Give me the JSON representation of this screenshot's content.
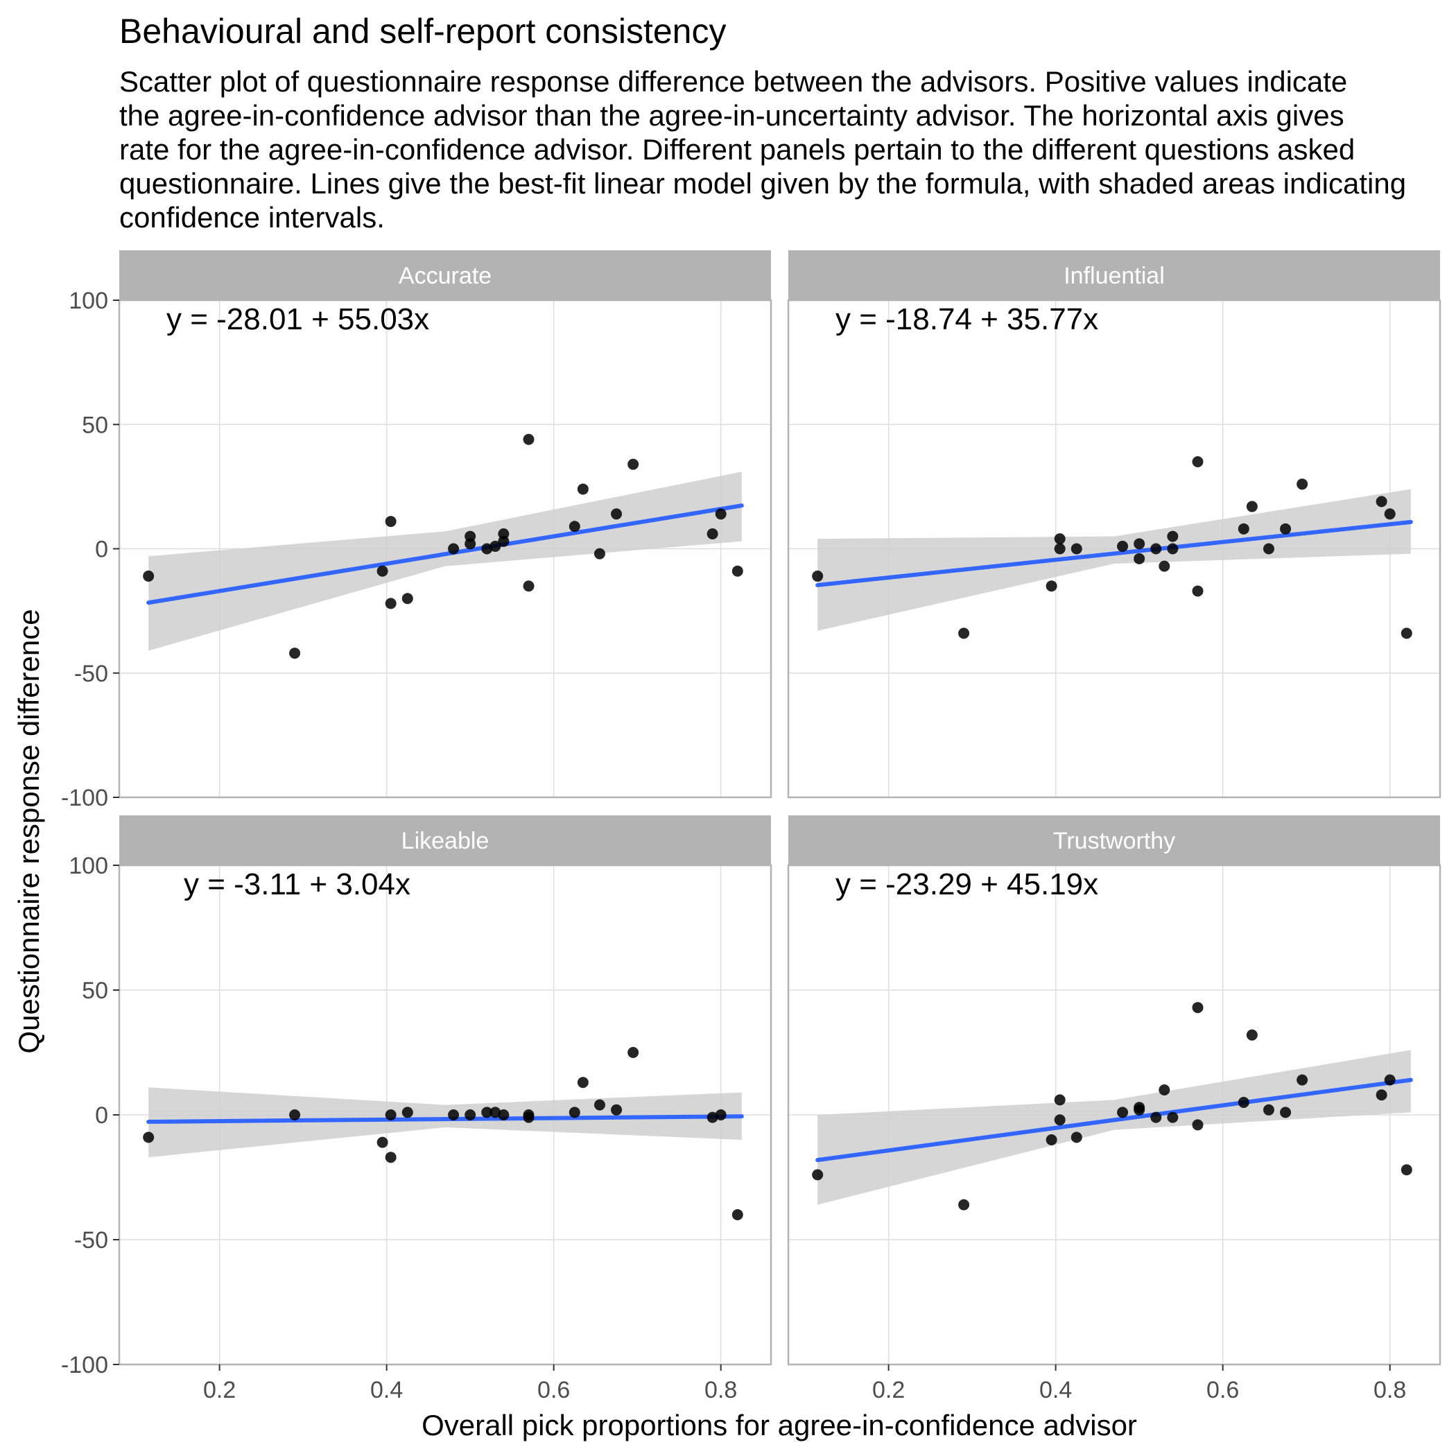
{
  "title": "Behavioural and self-report consistency",
  "subtitle_lines": [
    "Scatter plot of questionnaire response difference between the advisors. Positive values indicate",
    "the agree-in-confidence advisor than the agree-in-uncertainty advisor. The horizontal axis gives",
    "rate for the agree-in-confidence advisor. Different panels pertain to the different questions asked",
    "questionnaire. Lines give the best-fit linear model given by the formula, with shaded areas indicating",
    "confidence intervals."
  ],
  "colors": {
    "point": "#000000",
    "fit_line": "#3366FF",
    "ci_band": "#CCCCCC",
    "strip": "#B3B3B3",
    "grid": "#DEDEDE",
    "panel_border": "#B3B3B3"
  },
  "chart_data": {
    "type": "scatter",
    "facets": "2x2",
    "xlabel": "Overall pick proportions for agree-in-confidence advisor",
    "ylabel": "Questionnaire response difference",
    "xlim": [
      0.08,
      0.86
    ],
    "ylim": [
      -100,
      100
    ],
    "x_ticks": [
      0.2,
      0.4,
      0.6,
      0.8
    ],
    "x_tick_labels": [
      "0.2",
      "0.4",
      "0.6",
      "0.8"
    ],
    "y_ticks": [
      -100,
      -50,
      0,
      50,
      100
    ],
    "y_tick_labels": [
      "-100",
      "-50",
      "0",
      "50",
      "100"
    ],
    "grid": true,
    "panels": [
      {
        "name": "Accurate",
        "equation": "y = -28.01 + 55.03x",
        "intercept": -28.01,
        "slope": 55.03,
        "fit_x_range": [
          0.115,
          0.825
        ],
        "ci": [
          {
            "x": 0.115,
            "lo": -41,
            "hi": -3
          },
          {
            "x": 0.47,
            "lo": -7,
            "hi": 7
          },
          {
            "x": 0.825,
            "lo": 3,
            "hi": 31
          }
        ],
        "points": [
          {
            "x": 0.115,
            "y": -11
          },
          {
            "x": 0.29,
            "y": -42
          },
          {
            "x": 0.395,
            "y": -9
          },
          {
            "x": 0.405,
            "y": 11
          },
          {
            "x": 0.405,
            "y": -22
          },
          {
            "x": 0.425,
            "y": -20
          },
          {
            "x": 0.48,
            "y": 0
          },
          {
            "x": 0.5,
            "y": 5
          },
          {
            "x": 0.5,
            "y": 2
          },
          {
            "x": 0.52,
            "y": 0
          },
          {
            "x": 0.53,
            "y": 1
          },
          {
            "x": 0.54,
            "y": 3
          },
          {
            "x": 0.54,
            "y": 6
          },
          {
            "x": 0.57,
            "y": 44
          },
          {
            "x": 0.57,
            "y": -15
          },
          {
            "x": 0.625,
            "y": 9
          },
          {
            "x": 0.635,
            "y": 24
          },
          {
            "x": 0.655,
            "y": -2
          },
          {
            "x": 0.675,
            "y": 14
          },
          {
            "x": 0.695,
            "y": 34
          },
          {
            "x": 0.79,
            "y": 6
          },
          {
            "x": 0.8,
            "y": 14
          },
          {
            "x": 0.82,
            "y": -9
          }
        ]
      },
      {
        "name": "Influential",
        "equation": "y = -18.74 + 35.77x",
        "intercept": -18.74,
        "slope": 35.77,
        "fit_x_range": [
          0.115,
          0.825
        ],
        "ci": [
          {
            "x": 0.115,
            "lo": -33,
            "hi": 4
          },
          {
            "x": 0.47,
            "lo": -6,
            "hi": 5
          },
          {
            "x": 0.825,
            "lo": -2,
            "hi": 24
          }
        ],
        "points": [
          {
            "x": 0.115,
            "y": -11
          },
          {
            "x": 0.29,
            "y": -34
          },
          {
            "x": 0.395,
            "y": -15
          },
          {
            "x": 0.405,
            "y": 4
          },
          {
            "x": 0.405,
            "y": 0
          },
          {
            "x": 0.425,
            "y": 0
          },
          {
            "x": 0.48,
            "y": 1
          },
          {
            "x": 0.5,
            "y": 2
          },
          {
            "x": 0.5,
            "y": -4
          },
          {
            "x": 0.52,
            "y": 0
          },
          {
            "x": 0.53,
            "y": -7
          },
          {
            "x": 0.54,
            "y": 5
          },
          {
            "x": 0.54,
            "y": 0
          },
          {
            "x": 0.57,
            "y": 35
          },
          {
            "x": 0.57,
            "y": -17
          },
          {
            "x": 0.625,
            "y": 8
          },
          {
            "x": 0.635,
            "y": 17
          },
          {
            "x": 0.655,
            "y": 0
          },
          {
            "x": 0.675,
            "y": 8
          },
          {
            "x": 0.695,
            "y": 26
          },
          {
            "x": 0.79,
            "y": 19
          },
          {
            "x": 0.8,
            "y": 14
          },
          {
            "x": 0.82,
            "y": -34
          }
        ]
      },
      {
        "name": "Likeable",
        "equation": "y = -3.11 + 3.04x",
        "intercept": -3.11,
        "slope": 3.04,
        "fit_x_range": [
          0.115,
          0.825
        ],
        "ci": [
          {
            "x": 0.115,
            "lo": -17,
            "hi": 11
          },
          {
            "x": 0.47,
            "lo": -5,
            "hi": 4
          },
          {
            "x": 0.825,
            "lo": -10,
            "hi": 9
          }
        ],
        "points": [
          {
            "x": 0.115,
            "y": -9
          },
          {
            "x": 0.29,
            "y": 0
          },
          {
            "x": 0.395,
            "y": -11
          },
          {
            "x": 0.405,
            "y": -17
          },
          {
            "x": 0.405,
            "y": 0
          },
          {
            "x": 0.425,
            "y": 1
          },
          {
            "x": 0.48,
            "y": 0
          },
          {
            "x": 0.5,
            "y": 0
          },
          {
            "x": 0.52,
            "y": 1
          },
          {
            "x": 0.53,
            "y": 1
          },
          {
            "x": 0.54,
            "y": 0
          },
          {
            "x": 0.57,
            "y": 0
          },
          {
            "x": 0.57,
            "y": -1
          },
          {
            "x": 0.625,
            "y": 1
          },
          {
            "x": 0.635,
            "y": 13
          },
          {
            "x": 0.655,
            "y": 4
          },
          {
            "x": 0.675,
            "y": 2
          },
          {
            "x": 0.695,
            "y": 25
          },
          {
            "x": 0.79,
            "y": -1
          },
          {
            "x": 0.8,
            "y": 0
          },
          {
            "x": 0.82,
            "y": -40
          }
        ]
      },
      {
        "name": "Trustworthy",
        "equation": "y = -23.29 + 45.19x",
        "intercept": -23.29,
        "slope": 45.19,
        "fit_x_range": [
          0.115,
          0.825
        ],
        "ci": [
          {
            "x": 0.115,
            "lo": -36,
            "hi": 0
          },
          {
            "x": 0.47,
            "lo": -6,
            "hi": 6
          },
          {
            "x": 0.825,
            "lo": 1,
            "hi": 26
          }
        ],
        "points": [
          {
            "x": 0.115,
            "y": -24
          },
          {
            "x": 0.29,
            "y": -36
          },
          {
            "x": 0.395,
            "y": -10
          },
          {
            "x": 0.405,
            "y": 6
          },
          {
            "x": 0.405,
            "y": -2
          },
          {
            "x": 0.425,
            "y": -9
          },
          {
            "x": 0.48,
            "y": 1
          },
          {
            "x": 0.5,
            "y": 3
          },
          {
            "x": 0.5,
            "y": 2
          },
          {
            "x": 0.52,
            "y": -1
          },
          {
            "x": 0.53,
            "y": 10
          },
          {
            "x": 0.54,
            "y": -1
          },
          {
            "x": 0.57,
            "y": 43
          },
          {
            "x": 0.57,
            "y": -4
          },
          {
            "x": 0.625,
            "y": 5
          },
          {
            "x": 0.635,
            "y": 32
          },
          {
            "x": 0.655,
            "y": 2
          },
          {
            "x": 0.675,
            "y": 1
          },
          {
            "x": 0.695,
            "y": 14
          },
          {
            "x": 0.79,
            "y": 8
          },
          {
            "x": 0.8,
            "y": 14
          },
          {
            "x": 0.82,
            "y": -22
          }
        ]
      }
    ]
  }
}
